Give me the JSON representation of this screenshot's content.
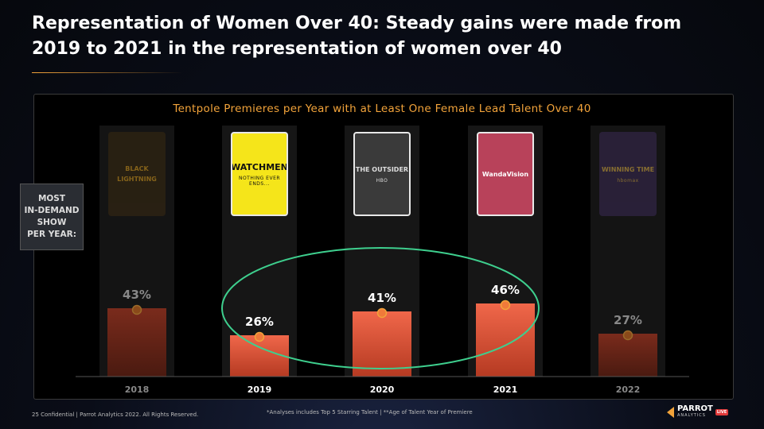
{
  "title": "Representation of Women Over 40: Steady gains were made from 2019 to 2021 in the representation of women over 40",
  "side_label": "MOST\nIN-DEMAND\nSHOW\nPER YEAR:",
  "posters": [
    {
      "year": "2018",
      "text": "BLACK LIGHTNING",
      "sub": "",
      "bg": "#3a2a12",
      "fg": "#e0a21f",
      "highlight": false
    },
    {
      "year": "2019",
      "text": "WATCHMEN",
      "sub": "NOTHING EVER ENDS...",
      "bg": "#f5e51a",
      "fg": "#111",
      "highlight": true
    },
    {
      "year": "2020",
      "text": "THE OUTSIDER",
      "sub": "HBO",
      "bg": "#3a3a3a",
      "fg": "#ddd",
      "highlight": true
    },
    {
      "year": "2021",
      "text": "WandaVision",
      "sub": "",
      "bg": "#b8425a",
      "fg": "#fff",
      "highlight": true
    },
    {
      "year": "2022",
      "text": "WINNING TIME",
      "sub": "hbomax",
      "bg": "#3b2a55",
      "fg": "#e3b64a",
      "highlight": false
    }
  ],
  "chart_data": {
    "type": "bar",
    "title": "Tentpole Premieres per Year with at Least One Female Lead Talent Over 40",
    "categories": [
      "2018",
      "2019",
      "2020",
      "2021",
      "2022"
    ],
    "values": [
      43,
      26,
      41,
      46,
      27
    ],
    "value_labels": [
      "43%",
      "26%",
      "41%",
      "46%",
      "27%"
    ],
    "highlighted": [
      false,
      true,
      true,
      true,
      false
    ],
    "ylim": [
      0,
      120
    ],
    "xlabel": "",
    "ylabel": "",
    "grid": false,
    "legend": "none",
    "annotation": "ellipse around 2019-2021",
    "colors": {
      "highlight": "#f0674a",
      "muted": "#7a2b1c",
      "marker": "#f2a33a",
      "ellipse": "#3ecf8e"
    }
  },
  "footer": {
    "left": "25 Confidential | Parrot Analytics 2022. All Rights Reserved.",
    "note": "*Analyses includes Top 5 Starring Talent | **Age of Talent Year of Premiere"
  },
  "logo": {
    "name": "PARROT",
    "sub": "ANALYTICS",
    "badge": "LIVE"
  }
}
